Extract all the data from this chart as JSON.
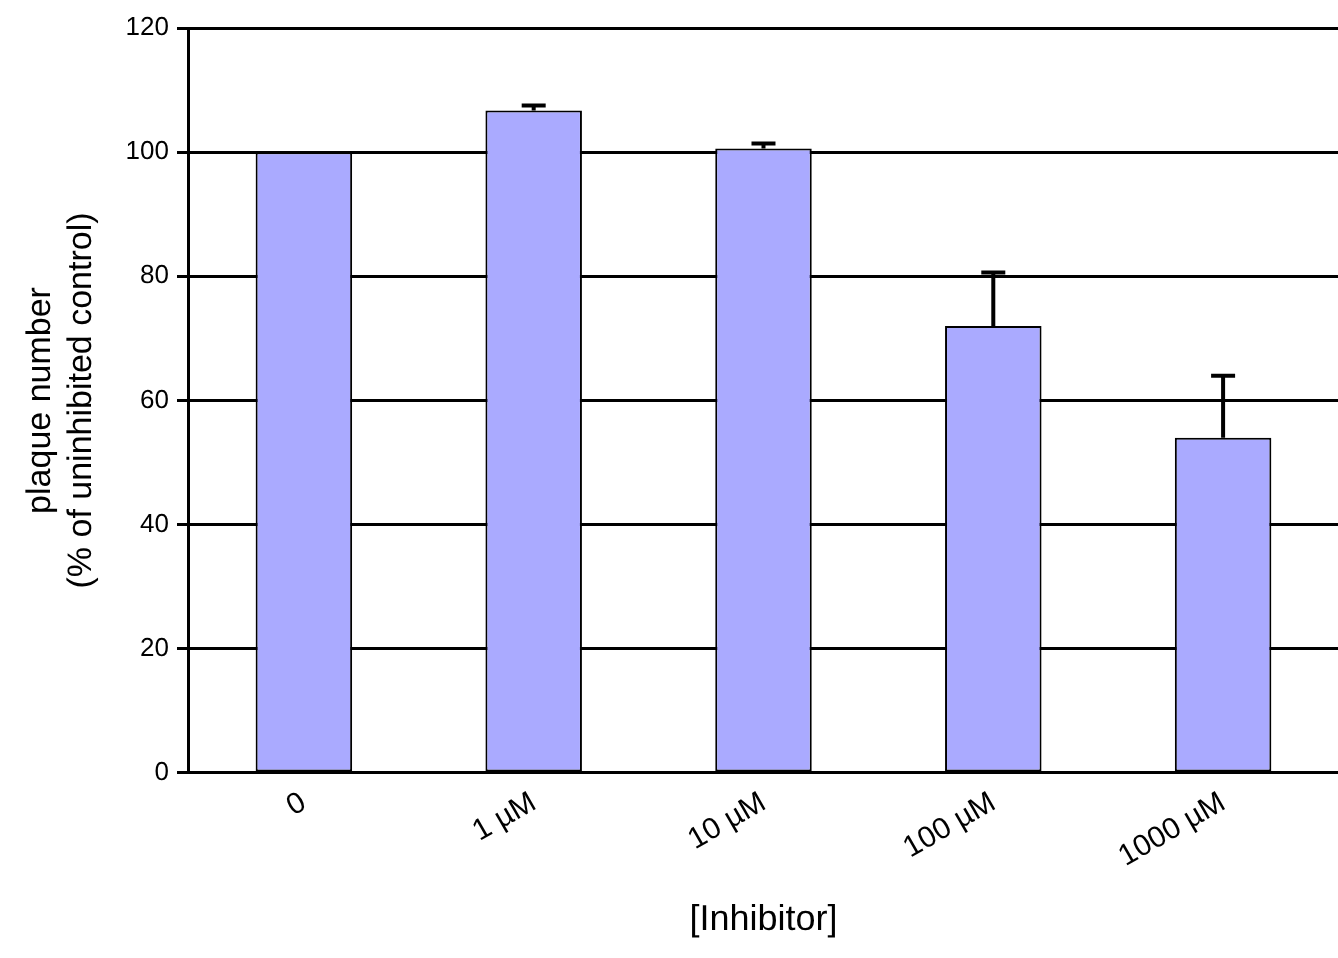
{
  "chart_data": {
    "type": "bar",
    "ylabel": "plaque number\n(% of uninhibited control)",
    "xlabel": "[Inhibitor]",
    "categories": [
      "0",
      "1 µM",
      "10 µM",
      "100 µM",
      "1000 µM"
    ],
    "values": [
      100,
      106.7,
      100.6,
      72.0,
      54.0
    ],
    "errors": [
      null,
      [
        106.7,
        107.5
      ],
      [
        100.6,
        101.4
      ],
      [
        72.0,
        80.6
      ],
      [
        54.0,
        64.0
      ]
    ],
    "color": "#aaaaff",
    "ylim": [
      0,
      120
    ],
    "yticks": [
      0,
      20,
      40,
      60,
      80,
      100,
      120
    ],
    "grid": "y"
  }
}
